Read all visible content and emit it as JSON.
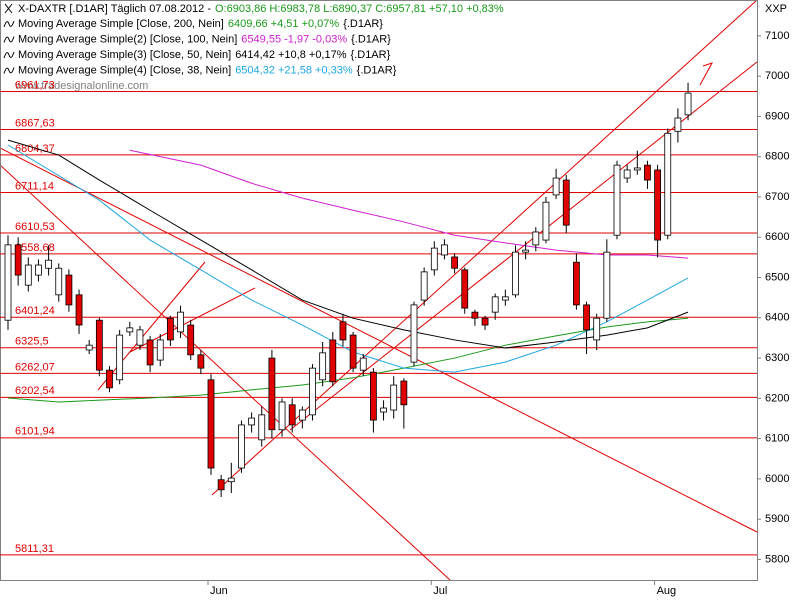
{
  "chart_data": {
    "type": "candlestick",
    "title": "X-DAXTR [.D1AR]  Täglich 07.08.2012 -",
    "quote": "O:6903,86 H:6983,78 L:6890,37 C:6957,81 +57,10 +0,83%",
    "quote_color": "#1a9a1a",
    "y_label": "XXP",
    "watermark": "www.tradesignalonline.com",
    "up_color": "#ffffff",
    "down_color": "#e00000",
    "categories": [
      null,
      null,
      null,
      null,
      null,
      null,
      null,
      null,
      null,
      null,
      null,
      null,
      null,
      null,
      null,
      null,
      null,
      null,
      null,
      null,
      "Jun",
      null,
      null,
      null,
      null,
      null,
      null,
      null,
      null,
      null,
      null,
      null,
      null,
      null,
      null,
      null,
      null,
      null,
      null,
      null,
      null,
      null,
      "Jul",
      null,
      null,
      null,
      null,
      null,
      null,
      null,
      null,
      null,
      null,
      null,
      null,
      null,
      null,
      null,
      null,
      null,
      null,
      null,
      null,
      null,
      "Aug",
      null,
      null,
      null
    ],
    "open": [
      6394,
      6581,
      6481,
      6506,
      6523,
      6457,
      6506,
      6457,
      6320,
      6394,
      6270,
      6246,
      6365,
      6332,
      6345,
      6295,
      6399,
      6365,
      6382,
      6308,
      6246,
      5998,
      5993,
      6027,
      6134,
      6097,
      6300,
      6122,
      6184,
      6146,
      6159,
      6246,
      6345,
      6390,
      6357,
      6270,
      6265,
      6166,
      6171,
      6243,
      6290,
      6444,
      6519,
      6556,
      6551,
      6519,
      6414,
      6399,
      6414,
      6444,
      6457,
      6563,
      6581,
      6593,
      6705,
      6742,
      6538,
      6432,
      6345,
      6399,
      6605,
      6747,
      6767,
      6779,
      6767,
      6605,
      6863,
      6903.86
    ],
    "high": [
      6605,
      6600,
      6550,
      6545,
      6580,
      6535,
      6520,
      6470,
      6345,
      6400,
      6280,
      6370,
      6390,
      6380,
      6355,
      6360,
      6405,
      6430,
      6395,
      6320,
      6260,
      6010,
      6040,
      6145,
      6165,
      6180,
      6320,
      6200,
      6200,
      6180,
      6285,
      6340,
      6365,
      6410,
      6365,
      6310,
      6275,
      6195,
      6255,
      6250,
      6440,
      6525,
      6590,
      6595,
      6560,
      6525,
      6420,
      6405,
      6460,
      6470,
      6580,
      6590,
      6625,
      6700,
      6770,
      6755,
      6560,
      6440,
      6410,
      6595,
      6790,
      6780,
      6815,
      6790,
      6780,
      6870,
      6920,
      6983.78
    ],
    "low": [
      6370,
      6480,
      6465,
      6490,
      6505,
      6440,
      6415,
      6360,
      6310,
      6255,
      6215,
      6235,
      6355,
      6320,
      6265,
      6280,
      6330,
      6350,
      6295,
      6260,
      6010,
      5955,
      5965,
      6015,
      6115,
      6080,
      6100,
      6105,
      6115,
      6125,
      6145,
      6230,
      6230,
      6330,
      6265,
      6255,
      6115,
      6145,
      6150,
      6125,
      6280,
      6430,
      6505,
      6545,
      6510,
      6410,
      6380,
      6370,
      6395,
      6430,
      6450,
      6545,
      6565,
      6585,
      6695,
      6610,
      6420,
      6310,
      6320,
      6390,
      6595,
      6735,
      6755,
      6720,
      6550,
      6595,
      6835,
      6890.37
    ],
    "close": [
      6581,
      6506,
      6531,
      6531,
      6543,
      6523,
      6432,
      6382,
      6332,
      6270,
      6226,
      6357,
      6375,
      6370,
      6283,
      6345,
      6345,
      6414,
      6308,
      6275,
      6027,
      5973,
      6002,
      6134,
      6151,
      6159,
      6122,
      6191,
      6134,
      6171,
      6275,
      6313,
      6241,
      6345,
      6275,
      6300,
      6146,
      6176,
      6233,
      6184,
      6432,
      6514,
      6573,
      6581,
      6523,
      6424,
      6399,
      6382,
      6452,
      6452,
      6563,
      6568,
      6613,
      6687,
      6747,
      6630,
      6432,
      6370,
      6399,
      6563,
      6779,
      6767,
      6772,
      6742,
      6593,
      6858,
      6896,
      6957.81
    ],
    "series": [
      {
        "name": "Moving Average Simple [Close, 200, Nein]",
        "value_text": "6409,66 +4,51 +0,07%",
        "suffix": "{.D1AR}",
        "color": "#1a9a1a",
        "x": [
          0,
          5,
          14,
          19,
          24,
          29,
          34,
          39,
          44,
          49,
          54,
          59,
          63,
          67
        ],
        "values": [
          6201,
          6191,
          6201,
          6208,
          6221,
          6233,
          6251,
          6275,
          6300,
          6332,
          6355,
          6377,
          6390,
          6399
        ]
      },
      {
        "name": "Moving Average Simple(2) [Close, 100, Nein]",
        "value_text": "6549,55 -1,97 -0,03%",
        "suffix": "{.D1AR}",
        "color": "#d020d0",
        "x": [
          12,
          19,
          24,
          29,
          34,
          39,
          44,
          49,
          54,
          59,
          63,
          67
        ],
        "values": [
          6816,
          6779,
          6734,
          6697,
          6667,
          6638,
          6605,
          6586,
          6568,
          6556,
          6556,
          6548
        ]
      },
      {
        "name": "Moving Average Simple(3) [Close, 50, Nein]",
        "value_text": "6414,42 +10,8 +0,17%",
        "suffix": "{.D1AR}",
        "color": "#000000",
        "x": [
          0,
          5,
          9,
          14,
          19,
          24,
          29,
          34,
          39,
          44,
          49,
          54,
          59,
          63,
          67
        ],
        "values": [
          6841,
          6804,
          6742,
          6667,
          6593,
          6519,
          6444,
          6399,
          6370,
          6345,
          6325,
          6340,
          6357,
          6375,
          6414
        ]
      },
      {
        "name": "Moving Average Simple(4) [Close, 38, Nein]",
        "value_text": "6504,32 +21,58 +0,33%",
        "suffix": "{.D1AR}",
        "color": "#20a8e0",
        "x": [
          0,
          9,
          14,
          19,
          24,
          29,
          34,
          39,
          44,
          49,
          54,
          59,
          63,
          67
        ],
        "values": [
          6829,
          6692,
          6593,
          6519,
          6444,
          6382,
          6315,
          6275,
          6265,
          6290,
          6332,
          6390,
          6444,
          6499
        ]
      }
    ],
    "levels": [
      {
        "value": 6961.73,
        "label": "6961,73"
      },
      {
        "value": 6867.63,
        "label": "6867,63"
      },
      {
        "value": 6804.37,
        "label": "6804,37"
      },
      {
        "value": 6711.14,
        "label": "6711,14"
      },
      {
        "value": 6610.53,
        "label": "6610,53"
      },
      {
        "value": 6558.68,
        "label": "6558,68"
      },
      {
        "value": 6401.24,
        "label": "6401,24"
      },
      {
        "value": 6325.5,
        "label": "6325,5"
      },
      {
        "value": 6262.07,
        "label": "6262,07"
      },
      {
        "value": 6202.54,
        "label": "6202,54"
      },
      {
        "value": 6101.94,
        "label": "6101,94"
      },
      {
        "value": 5811.31,
        "label": "5811,31"
      }
    ],
    "level_color": "#e00000",
    "ylim": [
      5749,
      7189
    ],
    "yticks": [
      5800,
      5900,
      6000,
      6100,
      6200,
      6300,
      6400,
      6500,
      6600,
      6700,
      6800,
      6900,
      7000,
      7100
    ]
  }
}
